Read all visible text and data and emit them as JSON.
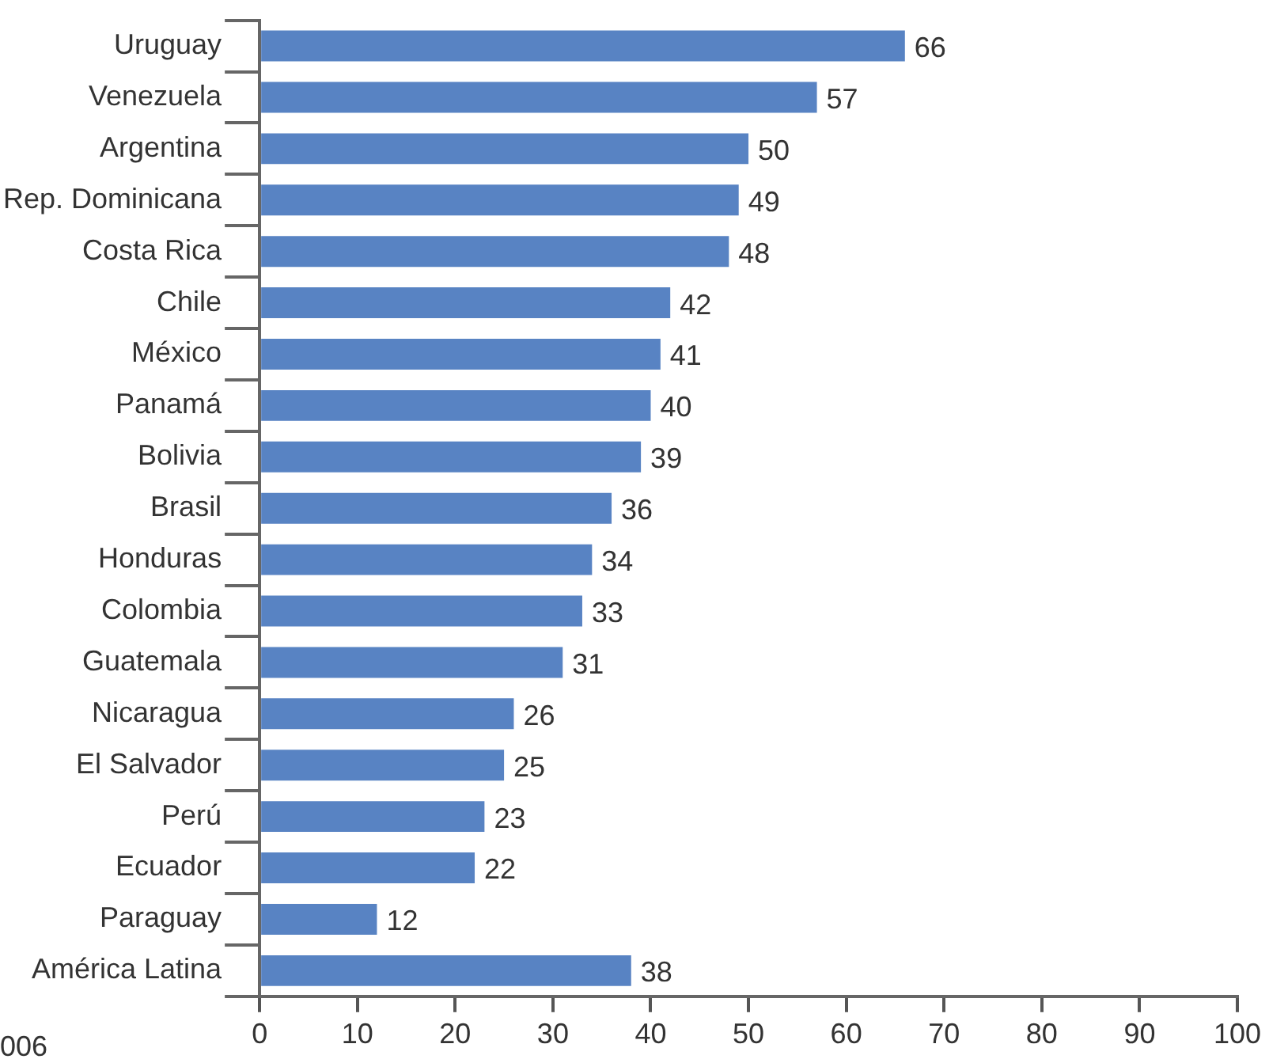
{
  "chart_data": {
    "type": "bar",
    "orientation": "horizontal",
    "categories": [
      "Uruguay",
      "Venezuela",
      "Argentina",
      "Rep. Dominicana",
      "Costa Rica",
      "Chile",
      "México",
      "Panamá",
      "Bolivia",
      "Brasil",
      "Honduras",
      "Colombia",
      "Guatemala",
      "Nicaragua",
      "El Salvador",
      "Perú",
      "Ecuador",
      "Paraguay",
      "América Latina"
    ],
    "values": [
      66,
      57,
      50,
      49,
      48,
      42,
      41,
      40,
      39,
      36,
      34,
      33,
      31,
      26,
      25,
      23,
      22,
      12,
      38
    ],
    "color": "#5883c3",
    "xlim": [
      0,
      100
    ],
    "xticks": [
      0,
      10,
      20,
      30,
      40,
      50,
      60,
      70,
      80,
      90,
      100
    ],
    "data_labels": true,
    "grid": false,
    "legend": false,
    "annotations": [
      "006"
    ]
  }
}
